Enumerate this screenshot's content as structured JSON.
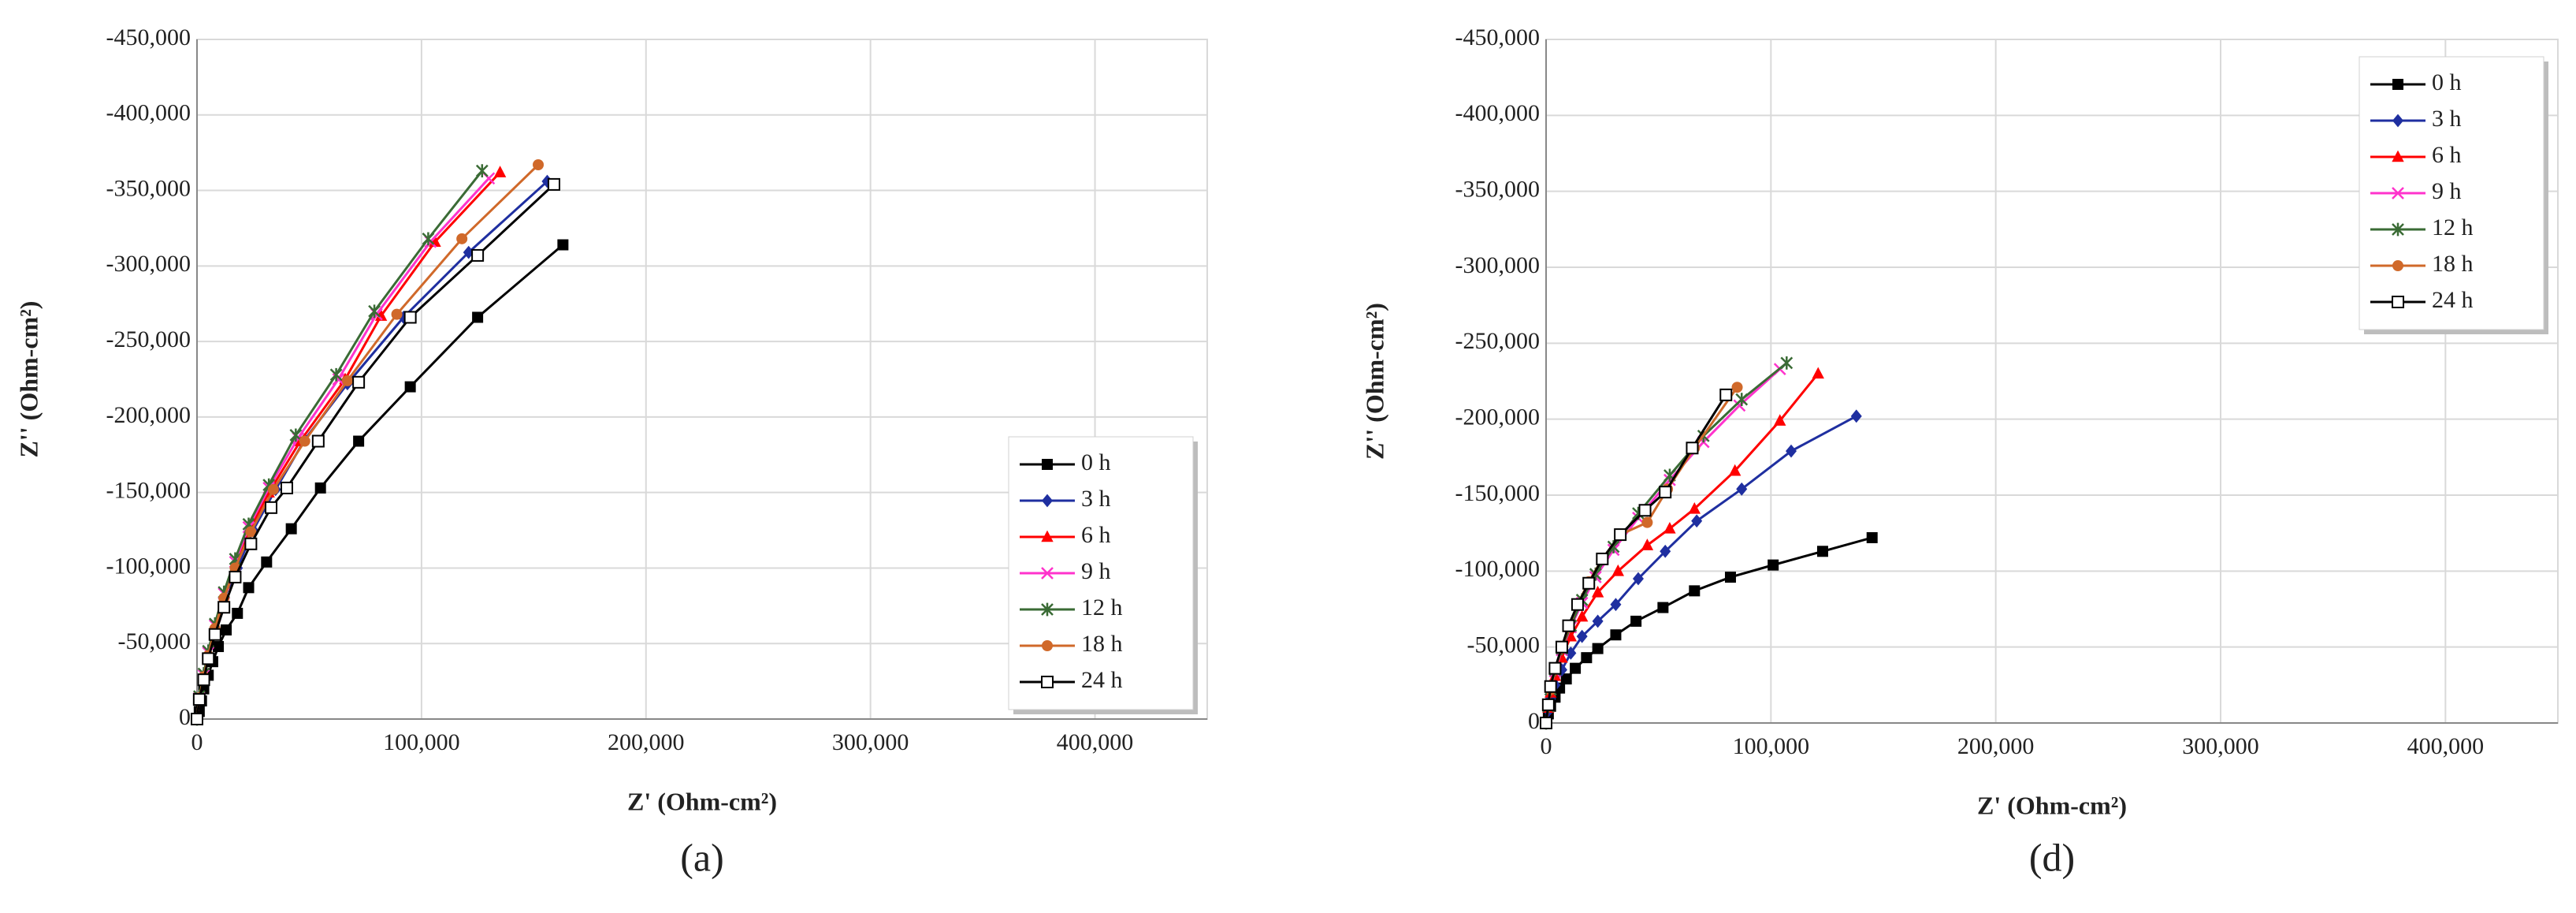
{
  "chart_data": [
    {
      "type": "line",
      "caption": "(a)",
      "xlabel": "Z' (Ohm-cm²)",
      "ylabel": "Z'' (Ohm-cm²)",
      "xlim": [
        0,
        450000
      ],
      "ylim": [
        0,
        -450000
      ],
      "xticks": [
        0,
        {
          "value": 100000,
          "label": "100,000"
        },
        {
          "value": 200000,
          "label": "200,000"
        },
        {
          "value": 300000,
          "label": "300,000"
        },
        {
          "value": 400000,
          "label": "400,000"
        }
      ],
      "yticks": [
        0,
        {
          "value": -50000,
          "label": "-50,000"
        },
        {
          "value": -100000,
          "label": "-100,000"
        },
        {
          "value": -150000,
          "label": "-150,000"
        },
        {
          "value": -200000,
          "label": "-200,000"
        },
        {
          "value": -250000,
          "label": "-250,000"
        },
        {
          "value": -300000,
          "label": "-300,000"
        },
        {
          "value": -350000,
          "label": "-350,000"
        },
        {
          "value": -400000,
          "label": "-400,000"
        },
        {
          "value": -450000,
          "label": "-450,000"
        }
      ],
      "grid": true,
      "legend": "lower right",
      "series": [
        {
          "name": "0 h",
          "color": "#000000",
          "marker": "square",
          "x": [
            0,
            1000,
            2000,
            3000,
            5000,
            7000,
            9500,
            13000,
            18000,
            23000,
            31000,
            42000,
            55000,
            72000,
            95000,
            125000,
            163000
          ],
          "values": [
            0,
            -5000,
            -12000,
            -20000,
            -29000,
            -38000,
            -48000,
            -59000,
            -70000,
            -87000,
            -104000,
            -126000,
            -153000,
            -184000,
            -220000,
            -266000,
            -314000
          ]
        },
        {
          "name": "3 h",
          "color": "#1f2fa0",
          "marker": "diamond",
          "x": [
            0,
            1000,
            3000,
            5000,
            8000,
            12000,
            18000,
            25000,
            35000,
            48000,
            67000,
            92000,
            121000,
            156000
          ],
          "values": [
            0,
            -14000,
            -28000,
            -42000,
            -60000,
            -80000,
            -100000,
            -125000,
            -152000,
            -185000,
            -222000,
            -266000,
            -309000,
            -356000
          ]
        },
        {
          "name": "6 h",
          "color": "#ff0000",
          "marker": "triangle",
          "x": [
            0,
            1000,
            3000,
            5000,
            8000,
            12000,
            17000,
            23000,
            32000,
            46000,
            66000,
            82000,
            106000,
            135000
          ],
          "values": [
            0,
            -14000,
            -28000,
            -42000,
            -60000,
            -80000,
            -100000,
            -124000,
            -150000,
            -184000,
            -225000,
            -267000,
            -316000,
            -362000
          ]
        },
        {
          "name": "9 h",
          "color": "#ff33cc",
          "marker": "x",
          "x": [
            0,
            1000,
            3000,
            5000,
            8000,
            12000,
            17000,
            23000,
            32000,
            45000,
            63000,
            80000,
            104000,
            130000
          ],
          "values": [
            0,
            -14000,
            -29000,
            -44000,
            -62000,
            -83000,
            -104000,
            -127000,
            -153000,
            -186000,
            -225000,
            -268000,
            -316000,
            -358000
          ]
        },
        {
          "name": "12 h",
          "color": "#3a6b35",
          "marker": "asterisk",
          "x": [
            0,
            1000,
            3000,
            5000,
            8000,
            12000,
            17000,
            23000,
            32000,
            44000,
            62000,
            79000,
            103000,
            127000
          ],
          "values": [
            0,
            -15000,
            -30000,
            -45000,
            -63000,
            -84000,
            -106000,
            -129000,
            -155000,
            -188000,
            -228000,
            -270000,
            -318000,
            -363000
          ]
        },
        {
          "name": "18 h",
          "color": "#d0692a",
          "marker": "circle",
          "x": [
            0,
            1000,
            3000,
            5000,
            8000,
            12000,
            17000,
            24000,
            34000,
            48000,
            67000,
            89000,
            118000,
            152000
          ],
          "values": [
            0,
            -14000,
            -28000,
            -42000,
            -60000,
            -80000,
            -100000,
            -124000,
            -152000,
            -184000,
            -224000,
            -268000,
            -318000,
            -367000
          ]
        },
        {
          "name": "24 h",
          "color": "#000000",
          "marker": "open-square",
          "x": [
            0,
            1000,
            3000,
            5000,
            8000,
            12000,
            17000,
            24000,
            33000,
            40000,
            54000,
            72000,
            95000,
            125000,
            159000
          ],
          "values": [
            0,
            -13000,
            -26000,
            -40000,
            -56000,
            -74000,
            -94000,
            -116000,
            -140000,
            -153000,
            -184000,
            -223000,
            -266000,
            -307000,
            -354000
          ]
        }
      ]
    },
    {
      "type": "line",
      "caption": "(d)",
      "xlabel": "Z' (Ohm-cm²)",
      "ylabel": "Z'' (Ohm-cm²)",
      "xlim": [
        0,
        450000
      ],
      "ylim": [
        0,
        -450000
      ],
      "xticks": [
        0,
        {
          "value": 100000,
          "label": "100,000"
        },
        {
          "value": 200000,
          "label": "200,000"
        },
        {
          "value": 300000,
          "label": "300,000"
        },
        {
          "value": 400000,
          "label": "400,000"
        }
      ],
      "yticks": [
        0,
        {
          "value": -50000,
          "label": "-50,000"
        },
        {
          "value": -100000,
          "label": "-100,000"
        },
        {
          "value": -150000,
          "label": "-150,000"
        },
        {
          "value": -200000,
          "label": "-200,000"
        },
        {
          "value": -250000,
          "label": "-250,000"
        },
        {
          "value": -300000,
          "label": "-300,000"
        },
        {
          "value": -350000,
          "label": "-350,000"
        },
        {
          "value": -400000,
          "label": "-400,000"
        },
        {
          "value": -450000,
          "label": "-450,000"
        }
      ],
      "grid": true,
      "legend": "upper right",
      "series": [
        {
          "name": "0 h",
          "color": "#000000",
          "marker": "square",
          "x": [
            0,
            1000,
            2000,
            4000,
            6000,
            9000,
            13000,
            18000,
            23000,
            31000,
            40000,
            52000,
            66000,
            82000,
            101000,
            123000,
            145000
          ],
          "values": [
            0,
            -6000,
            -11000,
            -17000,
            -23000,
            -29000,
            -36000,
            -43000,
            -49000,
            -58000,
            -67000,
            -76000,
            -87000,
            -96000,
            -104000,
            -113000,
            -122000
          ]
        },
        {
          "name": "3 h",
          "color": "#1f2fa0",
          "marker": "diamond",
          "x": [
            0,
            1000,
            2000,
            4000,
            7000,
            11000,
            16000,
            23000,
            31000,
            41000,
            53000,
            67000,
            87000,
            109000,
            138000
          ],
          "values": [
            0,
            -8000,
            -16000,
            -25000,
            -35000,
            -46000,
            -57000,
            -67000,
            -78000,
            -95000,
            -113000,
            -133000,
            -154000,
            -179000,
            -202000
          ]
        },
        {
          "name": "6 h",
          "color": "#ff0000",
          "marker": "triangle",
          "x": [
            0,
            1000,
            2000,
            4000,
            7000,
            11000,
            16000,
            23000,
            32000,
            45000,
            55000,
            66000,
            84000,
            104000,
            121000
          ],
          "values": [
            0,
            -10000,
            -20000,
            -31000,
            -43000,
            -57000,
            -70000,
            -86000,
            -100000,
            -117000,
            -128000,
            -141000,
            -166000,
            -199000,
            -230000
          ]
        },
        {
          "name": "9 h",
          "color": "#ff33cc",
          "marker": "x",
          "x": [
            0,
            1000,
            2000,
            4000,
            7000,
            11000,
            16000,
            22000,
            30000,
            41000,
            55000,
            70000,
            86000,
            104000
          ],
          "values": [
            0,
            -11000,
            -22000,
            -34000,
            -48000,
            -63000,
            -79000,
            -96000,
            -114000,
            -135000,
            -160000,
            -185000,
            -209000,
            -233000
          ]
        },
        {
          "name": "12 h",
          "color": "#3a6b35",
          "marker": "asterisk",
          "x": [
            0,
            1000,
            2000,
            4000,
            7000,
            11000,
            16000,
            22000,
            30000,
            41000,
            55000,
            70000,
            87000,
            107000
          ],
          "values": [
            0,
            -11000,
            -22000,
            -35000,
            -49000,
            -64000,
            -81000,
            -98000,
            -116000,
            -138000,
            -163000,
            -189000,
            -213000,
            -237000
          ]
        },
        {
          "name": "18 h",
          "color": "#d0692a",
          "marker": "circle",
          "x": [
            0,
            1000,
            2000,
            4000,
            7000,
            10000,
            14000,
            19000,
            25000,
            33000,
            45000,
            54000,
            66000,
            85000
          ],
          "values": [
            0,
            -11000,
            -22000,
            -35000,
            -49000,
            -63000,
            -78000,
            -93000,
            -108000,
            -124000,
            -132000,
            -154000,
            -181000,
            -221000
          ]
        },
        {
          "name": "24 h",
          "color": "#000000",
          "marker": "open-square",
          "x": [
            0,
            1000,
            2000,
            4000,
            7000,
            10000,
            14000,
            19000,
            25000,
            33000,
            44000,
            53000,
            65000,
            80000
          ],
          "values": [
            0,
            -12000,
            -24000,
            -36000,
            -50000,
            -64000,
            -78000,
            -92000,
            -108000,
            -124000,
            -140000,
            -152000,
            -181000,
            -216000
          ]
        }
      ]
    }
  ]
}
